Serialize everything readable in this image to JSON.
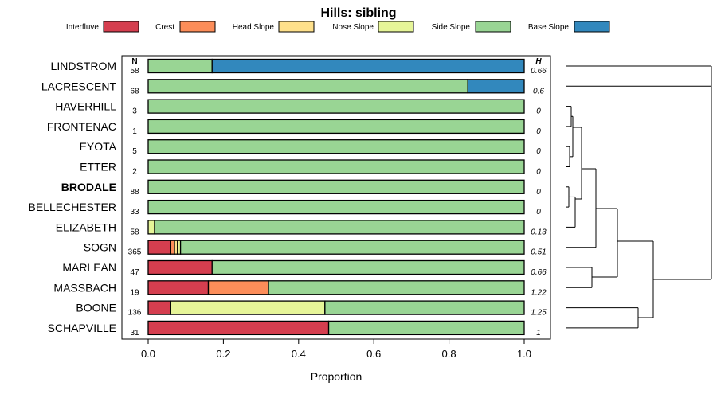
{
  "chart_data": {
    "type": "bar",
    "stacked": true,
    "orientation": "horizontal",
    "title": "Hills: sibling",
    "xlabel": "Proportion",
    "xlim": [
      0,
      1
    ],
    "xticks": [
      "0.0",
      "0.2",
      "0.4",
      "0.6",
      "0.8",
      "1.0"
    ],
    "n_header": "N",
    "h_header": "H",
    "bold_category": "BRODALE",
    "legend": [
      {
        "name": "Interfluve",
        "color": "#D53E4F"
      },
      {
        "name": "Crest",
        "color": "#FC8D59"
      },
      {
        "name": "Head Slope",
        "color": "#FEE08B"
      },
      {
        "name": "Nose Slope",
        "color": "#E6F598"
      },
      {
        "name": "Side Slope",
        "color": "#99D594"
      },
      {
        "name": "Base Slope",
        "color": "#3288BD"
      }
    ],
    "categories": [
      "LINDSTROM",
      "LACRESCENT",
      "HAVERHILL",
      "FRONTENAC",
      "EYOTA",
      "ETTER",
      "BRODALE",
      "BELLECHESTER",
      "ELIZABETH",
      "SOGN",
      "MARLEAN",
      "MASSBACH",
      "BOONE",
      "SCHAPVILLE"
    ],
    "n": [
      "58",
      "68",
      "3",
      "1",
      "5",
      "2",
      "88",
      "33",
      "58",
      "365",
      "47",
      "19",
      "136",
      "31"
    ],
    "h": [
      "0.66",
      "0.6",
      "0",
      "0",
      "0",
      "0",
      "0",
      "0",
      "0.13",
      "0.51",
      "0.66",
      "1.22",
      "1.25",
      "1"
    ],
    "series": [
      {
        "name": "Interfluve",
        "values": [
          0,
          0,
          0,
          0,
          0,
          0,
          0,
          0,
          0,
          0.06,
          0.17,
          0.16,
          0.06,
          0.48
        ]
      },
      {
        "name": "Crest",
        "values": [
          0,
          0,
          0,
          0,
          0,
          0,
          0,
          0,
          0,
          0.01,
          0,
          0.16,
          0,
          0
        ]
      },
      {
        "name": "Head Slope",
        "values": [
          0,
          0,
          0,
          0,
          0,
          0,
          0,
          0,
          0,
          0.008,
          0,
          0,
          0,
          0
        ]
      },
      {
        "name": "Nose Slope",
        "values": [
          0,
          0,
          0,
          0,
          0,
          0,
          0,
          0,
          0.017,
          0.008,
          0,
          0,
          0.41,
          0
        ]
      },
      {
        "name": "Side Slope",
        "values": [
          0.17,
          0.85,
          1,
          1,
          1,
          1,
          1,
          1,
          0.983,
          0.914,
          0.83,
          0.68,
          0.53,
          0.52
        ]
      },
      {
        "name": "Base Slope",
        "values": [
          0.83,
          0.15,
          0,
          0,
          0,
          0,
          0,
          0,
          0,
          0,
          0,
          0,
          0,
          0
        ]
      }
    ]
  }
}
